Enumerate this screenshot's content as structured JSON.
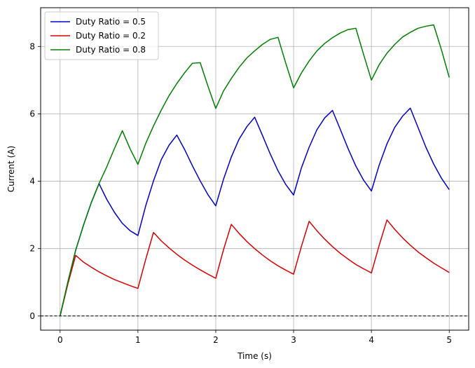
{
  "chart_data": {
    "type": "line",
    "title": "",
    "xlabel": "Time (s)",
    "ylabel": "Current (A)",
    "xlim": [
      -0.25,
      5.25
    ],
    "ylim": [
      -0.42,
      9.15
    ],
    "x_ticks": [
      0,
      1,
      2,
      3,
      4,
      5
    ],
    "y_ticks": [
      0,
      2,
      4,
      6,
      8
    ],
    "grid": true,
    "legend_position": "top-left",
    "reference_line": {
      "y": 0,
      "style": "dashed",
      "color": "#000000"
    },
    "series": [
      {
        "name": "Duty Ratio = 0.5",
        "color": "#0000cc",
        "x": [
          0,
          0.1,
          0.2,
          0.3,
          0.4,
          0.5,
          0.6,
          0.7,
          0.8,
          0.9,
          1.0,
          1.1,
          1.2,
          1.3,
          1.4,
          1.5,
          1.6,
          1.7,
          1.8,
          1.9,
          2.0,
          2.1,
          2.2,
          2.3,
          2.4,
          2.5,
          2.6,
          2.7,
          2.8,
          2.9,
          3.0,
          3.1,
          3.2,
          3.3,
          3.4,
          3.5,
          3.6,
          3.7,
          3.8,
          3.9,
          4.0,
          4.1,
          4.2,
          4.3,
          4.4,
          4.5,
          4.6,
          4.7,
          4.8,
          4.9,
          5.0
        ],
        "y": [
          0,
          1.01,
          1.95,
          2.69,
          3.36,
          3.93,
          3.46,
          3.07,
          2.75,
          2.53,
          2.39,
          3.27,
          4.01,
          4.64,
          5.07,
          5.37,
          4.94,
          4.46,
          4.01,
          3.6,
          3.27,
          4.06,
          4.72,
          5.25,
          5.62,
          5.9,
          5.36,
          4.81,
          4.31,
          3.9,
          3.59,
          4.39,
          5.01,
          5.53,
          5.88,
          6.1,
          5.54,
          4.97,
          4.45,
          4.03,
          3.71,
          4.48,
          5.11,
          5.6,
          5.93,
          6.17,
          5.59,
          5.01,
          4.51,
          4.09,
          3.75
        ]
      },
      {
        "name": "Duty Ratio = 0.2",
        "color": "#dd0000",
        "x": [
          0,
          0.1,
          0.2,
          0.3,
          0.4,
          0.5,
          0.6,
          0.7,
          0.8,
          0.9,
          1.0,
          1.1,
          1.2,
          1.3,
          1.4,
          1.5,
          1.6,
          1.7,
          1.8,
          1.9,
          2.0,
          2.1,
          2.2,
          2.3,
          2.4,
          2.5,
          2.6,
          2.7,
          2.8,
          2.9,
          3.0,
          3.1,
          3.2,
          3.3,
          3.4,
          3.5,
          3.6,
          3.7,
          3.8,
          3.9,
          4.0,
          4.1,
          4.2,
          4.3,
          4.4,
          4.5,
          4.6,
          4.7,
          4.8,
          4.9,
          5.0
        ],
        "y": [
          0,
          0.95,
          1.8,
          1.6,
          1.45,
          1.31,
          1.19,
          1.08,
          0.99,
          0.9,
          0.82,
          1.68,
          2.48,
          2.23,
          2.02,
          1.83,
          1.66,
          1.51,
          1.37,
          1.24,
          1.12,
          1.97,
          2.72,
          2.45,
          2.21,
          2.0,
          1.81,
          1.64,
          1.49,
          1.36,
          1.24,
          2.06,
          2.81,
          2.53,
          2.28,
          2.06,
          1.86,
          1.69,
          1.53,
          1.4,
          1.28,
          2.1,
          2.85,
          2.57,
          2.32,
          2.1,
          1.9,
          1.73,
          1.57,
          1.43,
          1.29
        ]
      },
      {
        "name": "Duty Ratio = 0.8",
        "color": "#008000",
        "x": [
          0,
          0.1,
          0.2,
          0.3,
          0.4,
          0.5,
          0.6,
          0.7,
          0.8,
          0.9,
          1.0,
          1.1,
          1.2,
          1.3,
          1.4,
          1.5,
          1.6,
          1.7,
          1.8,
          1.9,
          2.0,
          2.1,
          2.2,
          2.3,
          2.4,
          2.5,
          2.6,
          2.7,
          2.8,
          2.9,
          3.0,
          3.1,
          3.2,
          3.3,
          3.4,
          3.5,
          3.6,
          3.7,
          3.8,
          3.9,
          4.0,
          4.1,
          4.2,
          4.3,
          4.4,
          4.5,
          4.6,
          4.7,
          4.8,
          4.9,
          5.0
        ],
        "y": [
          0,
          1.01,
          1.95,
          2.69,
          3.36,
          3.93,
          4.43,
          4.98,
          5.5,
          4.96,
          4.5,
          5.12,
          5.64,
          6.11,
          6.54,
          6.9,
          7.22,
          7.5,
          7.52,
          6.82,
          6.16,
          6.68,
          7.05,
          7.38,
          7.66,
          7.87,
          8.06,
          8.21,
          8.27,
          7.5,
          6.77,
          7.21,
          7.57,
          7.87,
          8.09,
          8.26,
          8.4,
          8.5,
          8.54,
          7.76,
          7.0,
          7.46,
          7.8,
          8.06,
          8.28,
          8.42,
          8.54,
          8.6,
          8.64,
          7.9,
          7.08
        ]
      }
    ]
  }
}
